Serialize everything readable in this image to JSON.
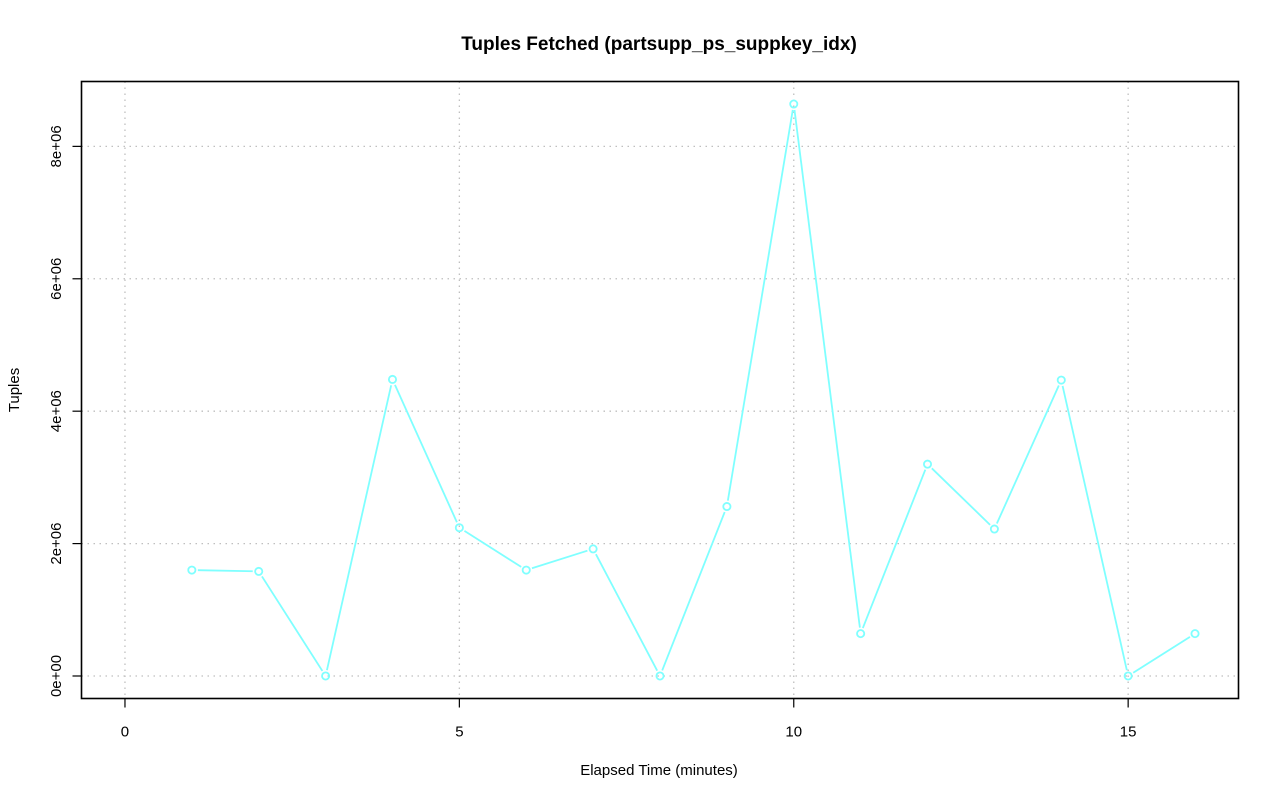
{
  "chart_data": {
    "type": "line",
    "title": "Tuples Fetched (partsupp_ps_suppkey_idx)",
    "xlabel": "Elapsed Time (minutes)",
    "ylabel": "Tuples",
    "xlim": [
      -0.65,
      16.65
    ],
    "ylim": [
      -340000,
      8980000
    ],
    "x_ticks": [
      0,
      5,
      10,
      15
    ],
    "x_tick_labels": [
      "0",
      "5",
      "10",
      "15"
    ],
    "y_ticks": [
      0,
      2000000,
      4000000,
      6000000,
      8000000
    ],
    "y_tick_labels": [
      "0e+00",
      "2e+06",
      "4e+06",
      "6e+06",
      "8e+06"
    ],
    "grid": true,
    "legend": "none",
    "series": [
      {
        "color": "#7fffff",
        "marker": "open-circle",
        "x": [
          1,
          2,
          3,
          4,
          5,
          6,
          7,
          8,
          9,
          10,
          11,
          12,
          13,
          14,
          15,
          16
        ],
        "y": [
          1600000,
          1580000,
          0,
          4480000,
          2240000,
          1600000,
          1920000,
          0,
          2560000,
          8640000,
          640000,
          3200000,
          2220000,
          4470000,
          0,
          640000
        ]
      }
    ]
  }
}
